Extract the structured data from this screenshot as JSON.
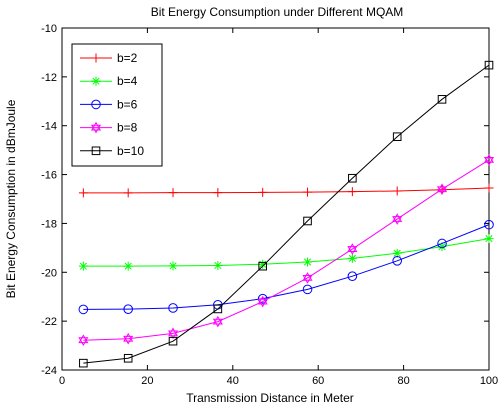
{
  "chart_data": {
    "type": "line",
    "title": "Bit Energy Consumption under Different MQAM",
    "xlabel": "Transmission Distance in Meter",
    "ylabel": "Bit Energy Consumption in dBmJoule",
    "xlim": [
      0,
      100
    ],
    "ylim": [
      -24,
      -10
    ],
    "xticks": [
      0,
      20,
      40,
      60,
      80,
      100
    ],
    "yticks": [
      -24,
      -22,
      -20,
      -18,
      -16,
      -14,
      -12,
      -10
    ],
    "grid": false,
    "legend_position": "top-left",
    "x": [
      5,
      15.5,
      26,
      36.5,
      47,
      57.5,
      68,
      78.5,
      89,
      100
    ],
    "series": [
      {
        "name": "b=2",
        "color": "#ff0000",
        "marker": "plus",
        "values": [
          -16.75,
          -16.75,
          -16.74,
          -16.74,
          -16.73,
          -16.72,
          -16.7,
          -16.67,
          -16.62,
          -16.55
        ]
      },
      {
        "name": "b=4",
        "color": "#00ff00",
        "marker": "star",
        "values": [
          -19.75,
          -19.75,
          -19.74,
          -19.72,
          -19.67,
          -19.58,
          -19.43,
          -19.22,
          -18.95,
          -18.62
        ]
      },
      {
        "name": "b=6",
        "color": "#0000ff",
        "marker": "circle",
        "values": [
          -21.52,
          -21.51,
          -21.46,
          -21.33,
          -21.08,
          -20.7,
          -20.16,
          -19.53,
          -18.82,
          -18.05
        ]
      },
      {
        "name": "b=8",
        "color": "#ff00ff",
        "marker": "hexagram",
        "values": [
          -22.78,
          -22.72,
          -22.5,
          -22.02,
          -21.2,
          -20.23,
          -19.05,
          -17.82,
          -16.6,
          -15.4
        ]
      },
      {
        "name": "b=10",
        "color": "#000000",
        "marker": "square",
        "values": [
          -23.72,
          -23.52,
          -22.82,
          -21.5,
          -19.75,
          -17.9,
          -16.15,
          -14.45,
          -12.92,
          -11.52
        ]
      }
    ]
  }
}
